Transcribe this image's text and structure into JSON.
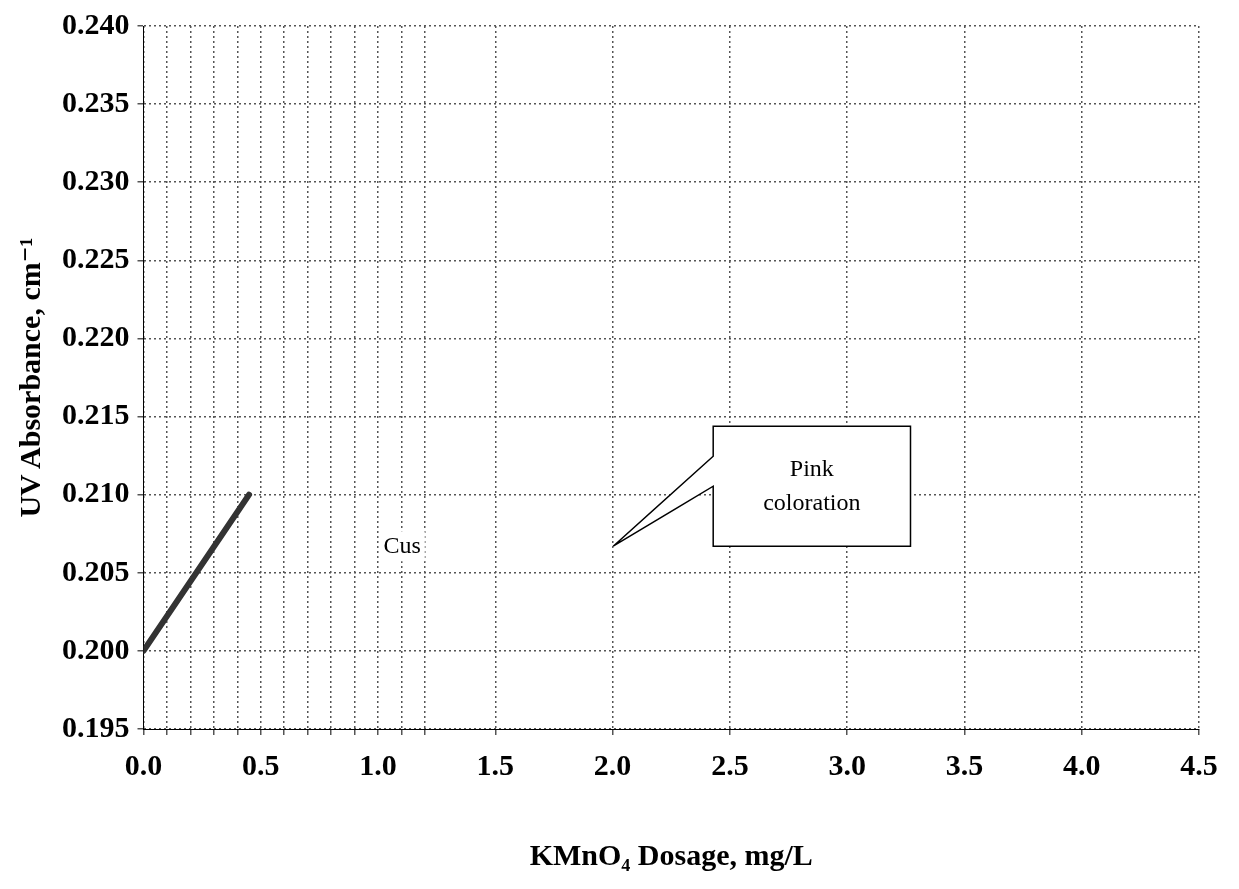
{
  "chart_data": {
    "type": "line",
    "xlabel": "KMnO₄ Dosage, mg/L",
    "ylabel": "UV Absorbance, cm⁻¹",
    "series": [
      {
        "color": "#333333",
        "x": [
          0,
          0.45
        ],
        "values": [
          0.2,
          0.21
        ]
      }
    ],
    "xlim": [
      0,
      4.5
    ],
    "xticks": [
      {
        "value": 0,
        "label": "0.0"
      },
      {
        "value": 0.1,
        "label": null
      },
      {
        "value": 0.2,
        "label": null
      },
      {
        "value": 0.3,
        "label": null
      },
      {
        "value": 0.4,
        "label": null
      },
      {
        "value": 0.5,
        "label": "0.5"
      },
      {
        "value": 0.6,
        "label": null
      },
      {
        "value": 0.7,
        "label": null
      },
      {
        "value": 0.8,
        "label": null
      },
      {
        "value": 0.9,
        "label": null
      },
      {
        "value": 1,
        "label": "1.0"
      },
      {
        "value": 1.1,
        "label": null
      },
      {
        "value": 1.2,
        "label": null
      },
      {
        "value": 1.5,
        "label": "1.5"
      },
      {
        "value": 2,
        "label": "2.0"
      },
      {
        "value": 2.5,
        "label": "2.5"
      },
      {
        "value": 3,
        "label": "3.0"
      },
      {
        "value": 3.5,
        "label": "3.5"
      },
      {
        "value": 4,
        "label": "4.0"
      },
      {
        "value": 4.5,
        "label": "4.5"
      }
    ],
    "ylim": [
      0.195,
      0.24
    ],
    "yticks": [
      {
        "value": 0.195,
        "label": "0.195"
      },
      {
        "value": 0.2,
        "label": "0.200"
      },
      {
        "value": 0.205,
        "label": "0.205"
      },
      {
        "value": 0.21,
        "label": "0.210"
      },
      {
        "value": 0.215,
        "label": "0.215"
      },
      {
        "value": 0.22,
        "label": "0.220"
      },
      {
        "value": 0.225,
        "label": "0.225"
      },
      {
        "value": 0.23,
        "label": "0.230"
      },
      {
        "value": 0.235,
        "label": "0.235"
      },
      {
        "value": 0.24,
        "label": "0.240"
      }
    ],
    "annotations": [
      "Cus",
      "Pink coloration"
    ],
    "grid": true,
    "marker": "none",
    "line_style": "solid",
    "legend": false
  }
}
